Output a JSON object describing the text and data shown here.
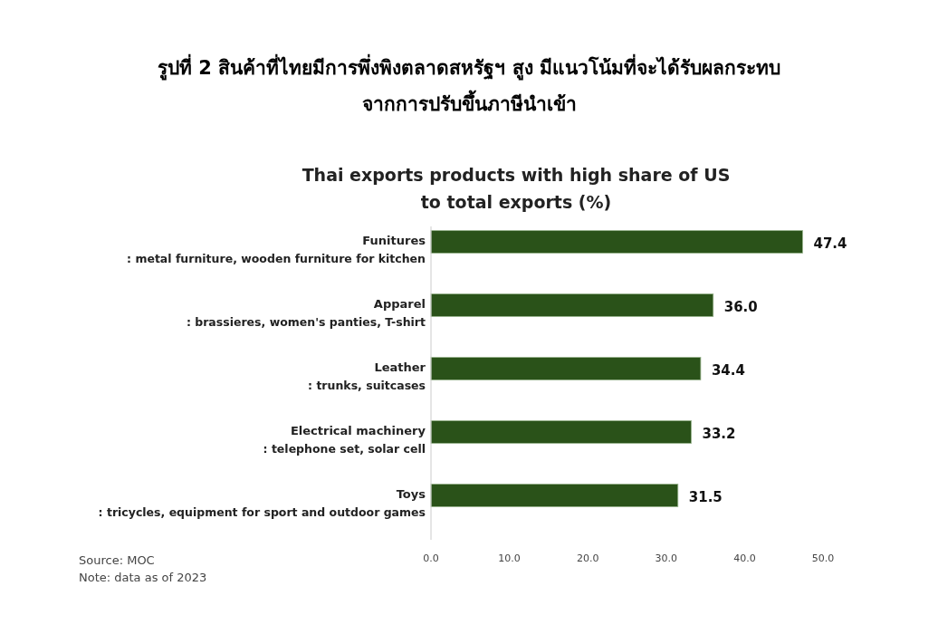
{
  "chart_data": {
    "type": "bar",
    "orientation": "horizontal",
    "title": "รูปที่ 2 สินค้าที่ไทยมีการพึ่งพิงตลาดสหรัฐฯ สูง มีแนวโน้มที่จะได้รับผลกระทบ\nจากการปรับขึ้นภาษีนำเข้า",
    "subtitle": "Thai exports products with high share of US\nto total exports (%)",
    "categories": [
      "Funitures\n: metal furniture, wooden furniture for kitchen",
      "Apparel\n: brassieres, women's panties, T-shirt",
      "Leather\n: trunks, suitcases",
      "Electrical machinery\n: telephone set, solar cell",
      "Toys\n: tricycles, equipment for sport and outdoor games"
    ],
    "values": [
      47.4,
      36.0,
      34.4,
      33.2,
      31.5
    ],
    "color": "#2a5219",
    "value_labels": [
      "47.4",
      "36.0",
      "34.4",
      "33.2",
      "31.5"
    ],
    "xlim": [
      0,
      50
    ],
    "xticks": [
      {
        "value": 0,
        "label": "0.0"
      },
      {
        "value": 10,
        "label": "10.0"
      },
      {
        "value": 20,
        "label": "20.0"
      },
      {
        "value": 30,
        "label": "30.0"
      },
      {
        "value": 40,
        "label": "40.0"
      },
      {
        "value": 50,
        "label": "50.0"
      }
    ],
    "grid": false,
    "annotations": [
      "Source: MOC",
      "Note: data as of 2023"
    ]
  }
}
